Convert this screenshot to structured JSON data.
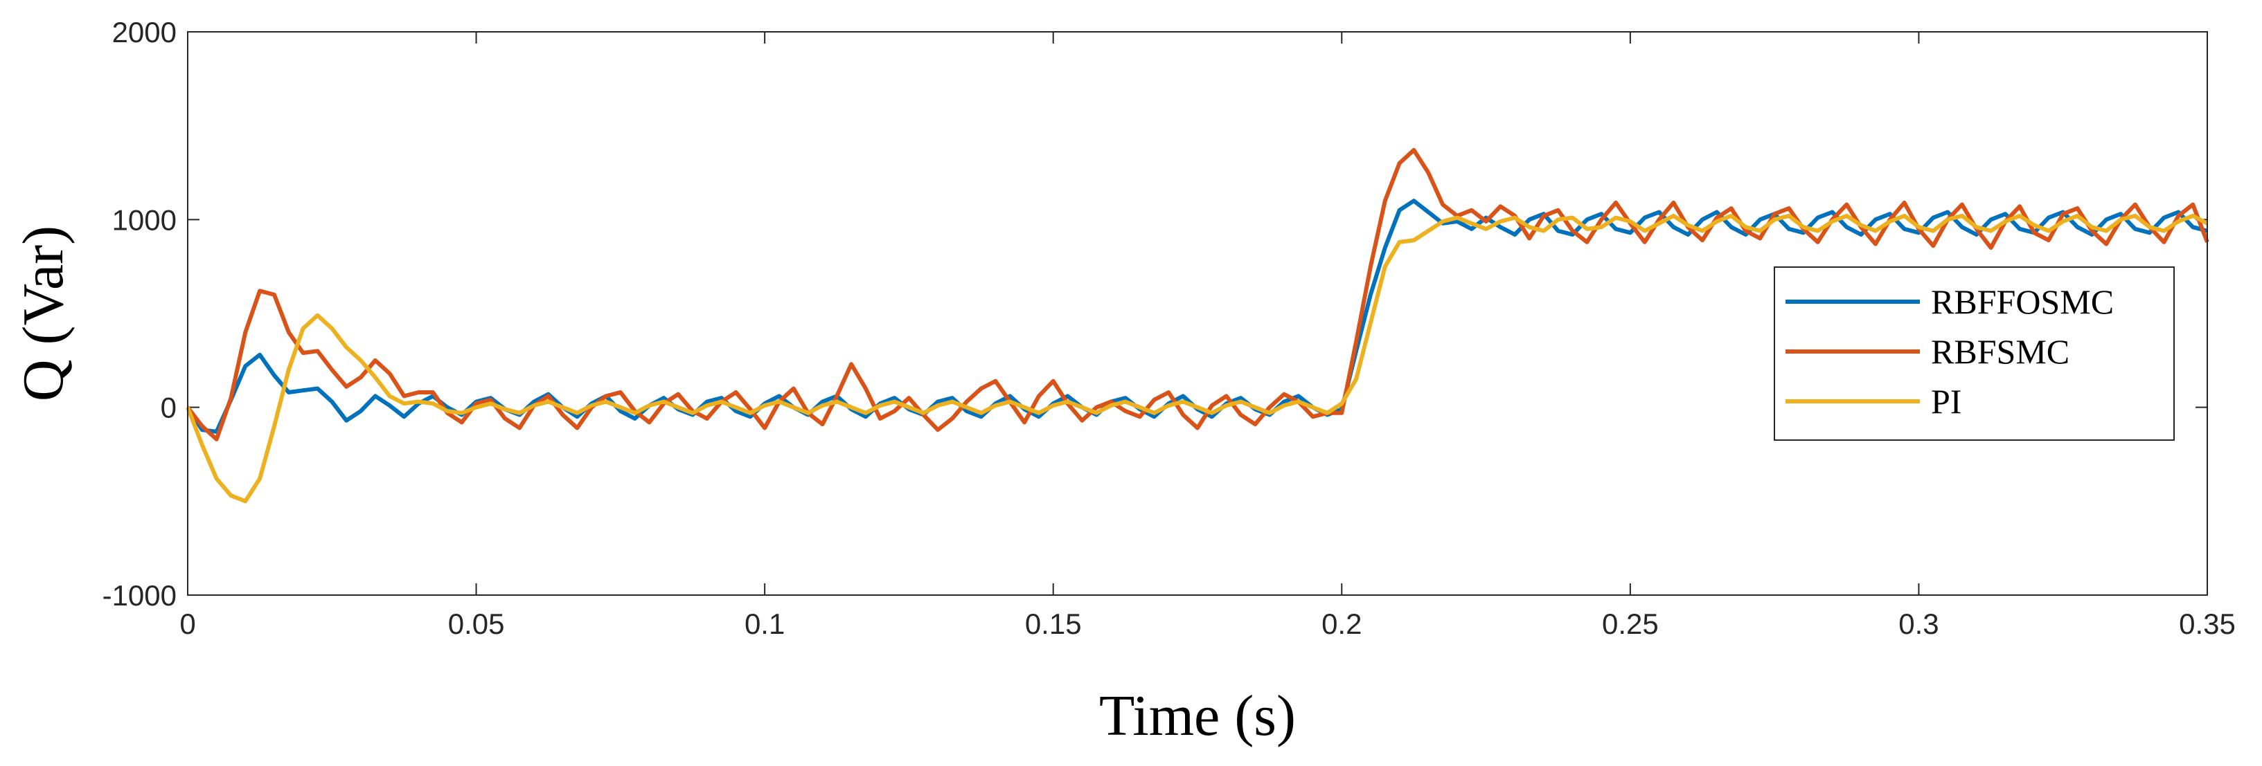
{
  "chart_data": {
    "type": "line",
    "xlabel": "Time (s)",
    "ylabel": "Q (Var)",
    "x": [
      0,
      0.0025,
      0.005,
      0.0075,
      0.01,
      0.0125,
      0.015,
      0.0175,
      0.02,
      0.0225,
      0.025,
      0.0275,
      0.03,
      0.0325,
      0.035,
      0.0375,
      0.04,
      0.0425,
      0.045,
      0.0475,
      0.05,
      0.0525,
      0.055,
      0.0575,
      0.06,
      0.0625,
      0.065,
      0.0675,
      0.07,
      0.0725,
      0.075,
      0.0775,
      0.08,
      0.0825,
      0.085,
      0.0875,
      0.09,
      0.0925,
      0.095,
      0.0975,
      0.1,
      0.1025,
      0.105,
      0.1075,
      0.11,
      0.1125,
      0.115,
      0.1175,
      0.12,
      0.1225,
      0.125,
      0.1275,
      0.13,
      0.1325,
      0.135,
      0.1375,
      0.14,
      0.1425,
      0.145,
      0.1475,
      0.15,
      0.1525,
      0.155,
      0.1575,
      0.16,
      0.1625,
      0.165,
      0.1675,
      0.17,
      0.1725,
      0.175,
      0.1775,
      0.18,
      0.1825,
      0.185,
      0.1875,
      0.19,
      0.1925,
      0.195,
      0.1975,
      0.2,
      0.2025,
      0.205,
      0.2075,
      0.21,
      0.2125,
      0.215,
      0.2175,
      0.22,
      0.2225,
      0.225,
      0.2275,
      0.23,
      0.2325,
      0.235,
      0.2375,
      0.24,
      0.2425,
      0.245,
      0.2475,
      0.25,
      0.2525,
      0.255,
      0.2575,
      0.26,
      0.2625,
      0.265,
      0.2675,
      0.27,
      0.2725,
      0.275,
      0.2775,
      0.28,
      0.2825,
      0.285,
      0.2875,
      0.29,
      0.2925,
      0.295,
      0.2975,
      0.3,
      0.3025,
      0.305,
      0.3075,
      0.31,
      0.3125,
      0.315,
      0.3175,
      0.32,
      0.3225,
      0.325,
      0.3275,
      0.33,
      0.3325,
      0.335,
      0.3375,
      0.34,
      0.3425,
      0.345,
      0.3475,
      0.35
    ],
    "series": [
      {
        "name": "RBFFOSMC",
        "color": "#0072bd",
        "values": [
          0,
          -120,
          -130,
          40,
          220,
          280,
          170,
          80,
          90,
          100,
          30,
          -70,
          -20,
          60,
          10,
          -50,
          20,
          60,
          0,
          -40,
          30,
          50,
          -10,
          -40,
          30,
          70,
          0,
          -50,
          20,
          60,
          -20,
          -60,
          10,
          50,
          -10,
          -40,
          30,
          50,
          -20,
          -50,
          20,
          60,
          0,
          -40,
          30,
          60,
          -10,
          -50,
          20,
          50,
          -10,
          -40,
          30,
          50,
          -20,
          -50,
          20,
          60,
          -10,
          -50,
          20,
          60,
          0,
          -40,
          30,
          50,
          -10,
          -50,
          20,
          60,
          -10,
          -50,
          20,
          50,
          -10,
          -40,
          30,
          60,
          0,
          -40,
          -10,
          300,
          600,
          850,
          1050,
          1100,
          1040,
          980,
          990,
          950,
          1010,
          960,
          920,
          1000,
          1030,
          940,
          920,
          1000,
          1030,
          950,
          930,
          1010,
          1040,
          960,
          920,
          1000,
          1040,
          960,
          920,
          1000,
          1030,
          950,
          930,
          1010,
          1040,
          960,
          920,
          1000,
          1030,
          950,
          930,
          1010,
          1040,
          960,
          920,
          1000,
          1030,
          950,
          930,
          1010,
          1040,
          960,
          920,
          1000,
          1030,
          950,
          930,
          1010,
          1040,
          960,
          940
        ]
      },
      {
        "name": "RBFSMC",
        "color": "#d95319",
        "values": [
          0,
          -100,
          -170,
          50,
          400,
          620,
          600,
          400,
          290,
          300,
          200,
          110,
          160,
          250,
          180,
          60,
          80,
          80,
          -30,
          -80,
          20,
          40,
          -60,
          -110,
          10,
          60,
          -40,
          -110,
          0,
          60,
          80,
          -20,
          -80,
          20,
          70,
          -20,
          -60,
          30,
          80,
          -10,
          -110,
          30,
          100,
          -30,
          -90,
          60,
          230,
          100,
          -60,
          -20,
          50,
          -40,
          -120,
          -60,
          30,
          100,
          140,
          30,
          -80,
          60,
          140,
          20,
          -70,
          0,
          30,
          -20,
          -50,
          40,
          80,
          -40,
          -110,
          10,
          60,
          -40,
          -90,
          0,
          70,
          30,
          -50,
          -30,
          -30,
          350,
          750,
          1100,
          1300,
          1370,
          1250,
          1080,
          1020,
          1050,
          990,
          1070,
          1020,
          900,
          1020,
          1050,
          940,
          880,
          1000,
          1090,
          980,
          880,
          1000,
          1090,
          960,
          890,
          1010,
          1060,
          940,
          900,
          1030,
          1060,
          950,
          880,
          1000,
          1080,
          960,
          870,
          1000,
          1090,
          950,
          860,
          1000,
          1080,
          950,
          850,
          990,
          1070,
          930,
          890,
          1030,
          1060,
          940,
          870,
          1000,
          1080,
          960,
          880,
          1020,
          1080,
          880
        ]
      },
      {
        "name": "PI",
        "color": "#edb120",
        "values": [
          0,
          -200,
          -380,
          -470,
          -500,
          -380,
          -100,
          200,
          420,
          490,
          420,
          320,
          250,
          160,
          60,
          20,
          30,
          20,
          -20,
          -30,
          0,
          20,
          -10,
          -30,
          10,
          30,
          0,
          -30,
          10,
          30,
          0,
          -30,
          10,
          30,
          0,
          -30,
          10,
          30,
          0,
          -30,
          10,
          30,
          0,
          -30,
          10,
          30,
          0,
          -30,
          10,
          30,
          0,
          -30,
          10,
          30,
          0,
          -30,
          10,
          30,
          0,
          -30,
          10,
          30,
          0,
          -30,
          10,
          30,
          0,
          -30,
          10,
          30,
          0,
          -30,
          10,
          30,
          0,
          -30,
          10,
          30,
          0,
          -30,
          20,
          150,
          450,
          750,
          880,
          890,
          940,
          990,
          1010,
          980,
          950,
          990,
          1010,
          960,
          940,
          1000,
          1010,
          950,
          960,
          1010,
          990,
          940,
          980,
          1020,
          970,
          940,
          990,
          1020,
          960,
          940,
          1000,
          1020,
          960,
          940,
          990,
          1020,
          970,
          940,
          990,
          1020,
          960,
          940,
          1000,
          1020,
          960,
          940,
          990,
          1020,
          970,
          940,
          990,
          1020,
          960,
          940,
          1000,
          1020,
          960,
          940,
          990,
          1020,
          980
        ]
      }
    ],
    "xlim": [
      0,
      0.35
    ],
    "ylim": [
      -1000,
      2000
    ],
    "xticks": [
      0,
      0.05,
      0.1,
      0.15,
      0.2,
      0.25,
      0.3,
      0.35
    ],
    "yticks": [
      -1000,
      0,
      1000,
      2000
    ],
    "legend": "east",
    "grid": false
  }
}
